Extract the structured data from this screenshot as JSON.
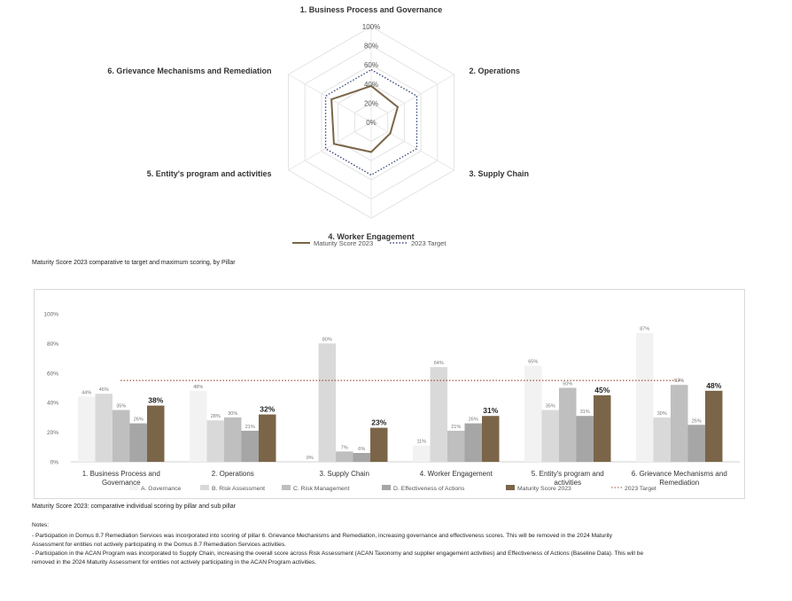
{
  "radar_legend": {
    "series": "Maturity Score 2023",
    "target": "2023 Target"
  },
  "captions": {
    "radar": "Maturity Score 2023 comparative to target and maximum scoring, by Pillar",
    "bars": "Maturity Score 2023: comparative individual scoring by pillar and sub pillar"
  },
  "notes": {
    "heading": "Notes:",
    "lines": [
      "- Participation in Domus 8.7 Remediation Services was incorporated into scoring of pillar 6. Grievance Mechanisms and Remediation, increasing governance and effectiveness scores. This will be removed in the 2024 Maturity",
      "Assessment for entities not actively participating in the Domus 8.7 Remediation Services activities.",
      "- Participation in the ACAN Program was incorporated to Supply Chain, increasing the overall score across Risk Assessment (ACAN Taxonomy and supplier engagement activities) and Effectiveness of Actions (Baseline Data). This will be",
      "removed in the 2024 Maturity Assessment for entities not actively participating in the ACAN Program activities."
    ]
  },
  "chart_data": [
    {
      "type": "radar",
      "categories": [
        "1. Business Process and Governance",
        "2. Operations",
        "3. Supply Chain",
        "4. Worker Engagement",
        "5. Entity's program and activities",
        "6. Grievance Mechanisms and Remediation"
      ],
      "tick_labels": [
        "0%",
        "20%",
        "40%",
        "60%",
        "80%",
        "100%"
      ],
      "ylim": [
        0,
        100
      ],
      "series": [
        {
          "name": "Maturity Score 2023",
          "values": [
            38,
            32,
            23,
            31,
            45,
            48
          ],
          "color": "#7b6548",
          "style": "solid"
        },
        {
          "name": "2023 Target",
          "values": [
            55,
            55,
            55,
            55,
            55,
            55
          ],
          "color": "#3a4a7a",
          "style": "dotted"
        }
      ]
    },
    {
      "type": "bar",
      "categories": [
        "1. Business Process and Governance",
        "2. Operations",
        "3. Supply Chain",
        "4. Worker Engagement",
        "5. Entity's program and activities",
        "6. Grievance Mechanisms and Remediation"
      ],
      "tick_labels": [
        "0%",
        "20%",
        "40%",
        "60%",
        "80%",
        "100%"
      ],
      "ylim": [
        0,
        100
      ],
      "series": [
        {
          "name": "A. Governance",
          "values": [
            44,
            48,
            0,
            11,
            65,
            87
          ],
          "labels": [
            "44%",
            "48%",
            "0%",
            "11%",
            "65%",
            "87%"
          ],
          "color": "#f2f2f2"
        },
        {
          "name": "B. Risk Assessment",
          "values": [
            46,
            28,
            80,
            64,
            35,
            30
          ],
          "labels": [
            "46%",
            "28%",
            "80%",
            "64%",
            "35%",
            "30%"
          ],
          "color": "#d9d9d9"
        },
        {
          "name": "C. Risk Management",
          "values": [
            35,
            30,
            7,
            21,
            50,
            52
          ],
          "labels": [
            "35%",
            "30%",
            "7%",
            "21%",
            "50%",
            "52%"
          ],
          "color": "#bfbfbf"
        },
        {
          "name": "D. Effectiveness of Actions",
          "values": [
            26,
            21,
            6,
            26,
            31,
            25
          ],
          "labels": [
            "26%",
            "21%",
            "6%",
            "26%",
            "31%",
            "25%"
          ],
          "color": "#a6a6a6"
        },
        {
          "name": "Maturity Score 2023",
          "values": [
            38,
            32,
            23,
            31,
            45,
            48
          ],
          "labels": [
            "38%",
            "32%",
            "23%",
            "31%",
            "45%",
            "48%"
          ],
          "color": "#7b6548"
        }
      ],
      "target": {
        "name": "2023 Target",
        "value": 55,
        "color": "#9b4a2f"
      }
    }
  ]
}
